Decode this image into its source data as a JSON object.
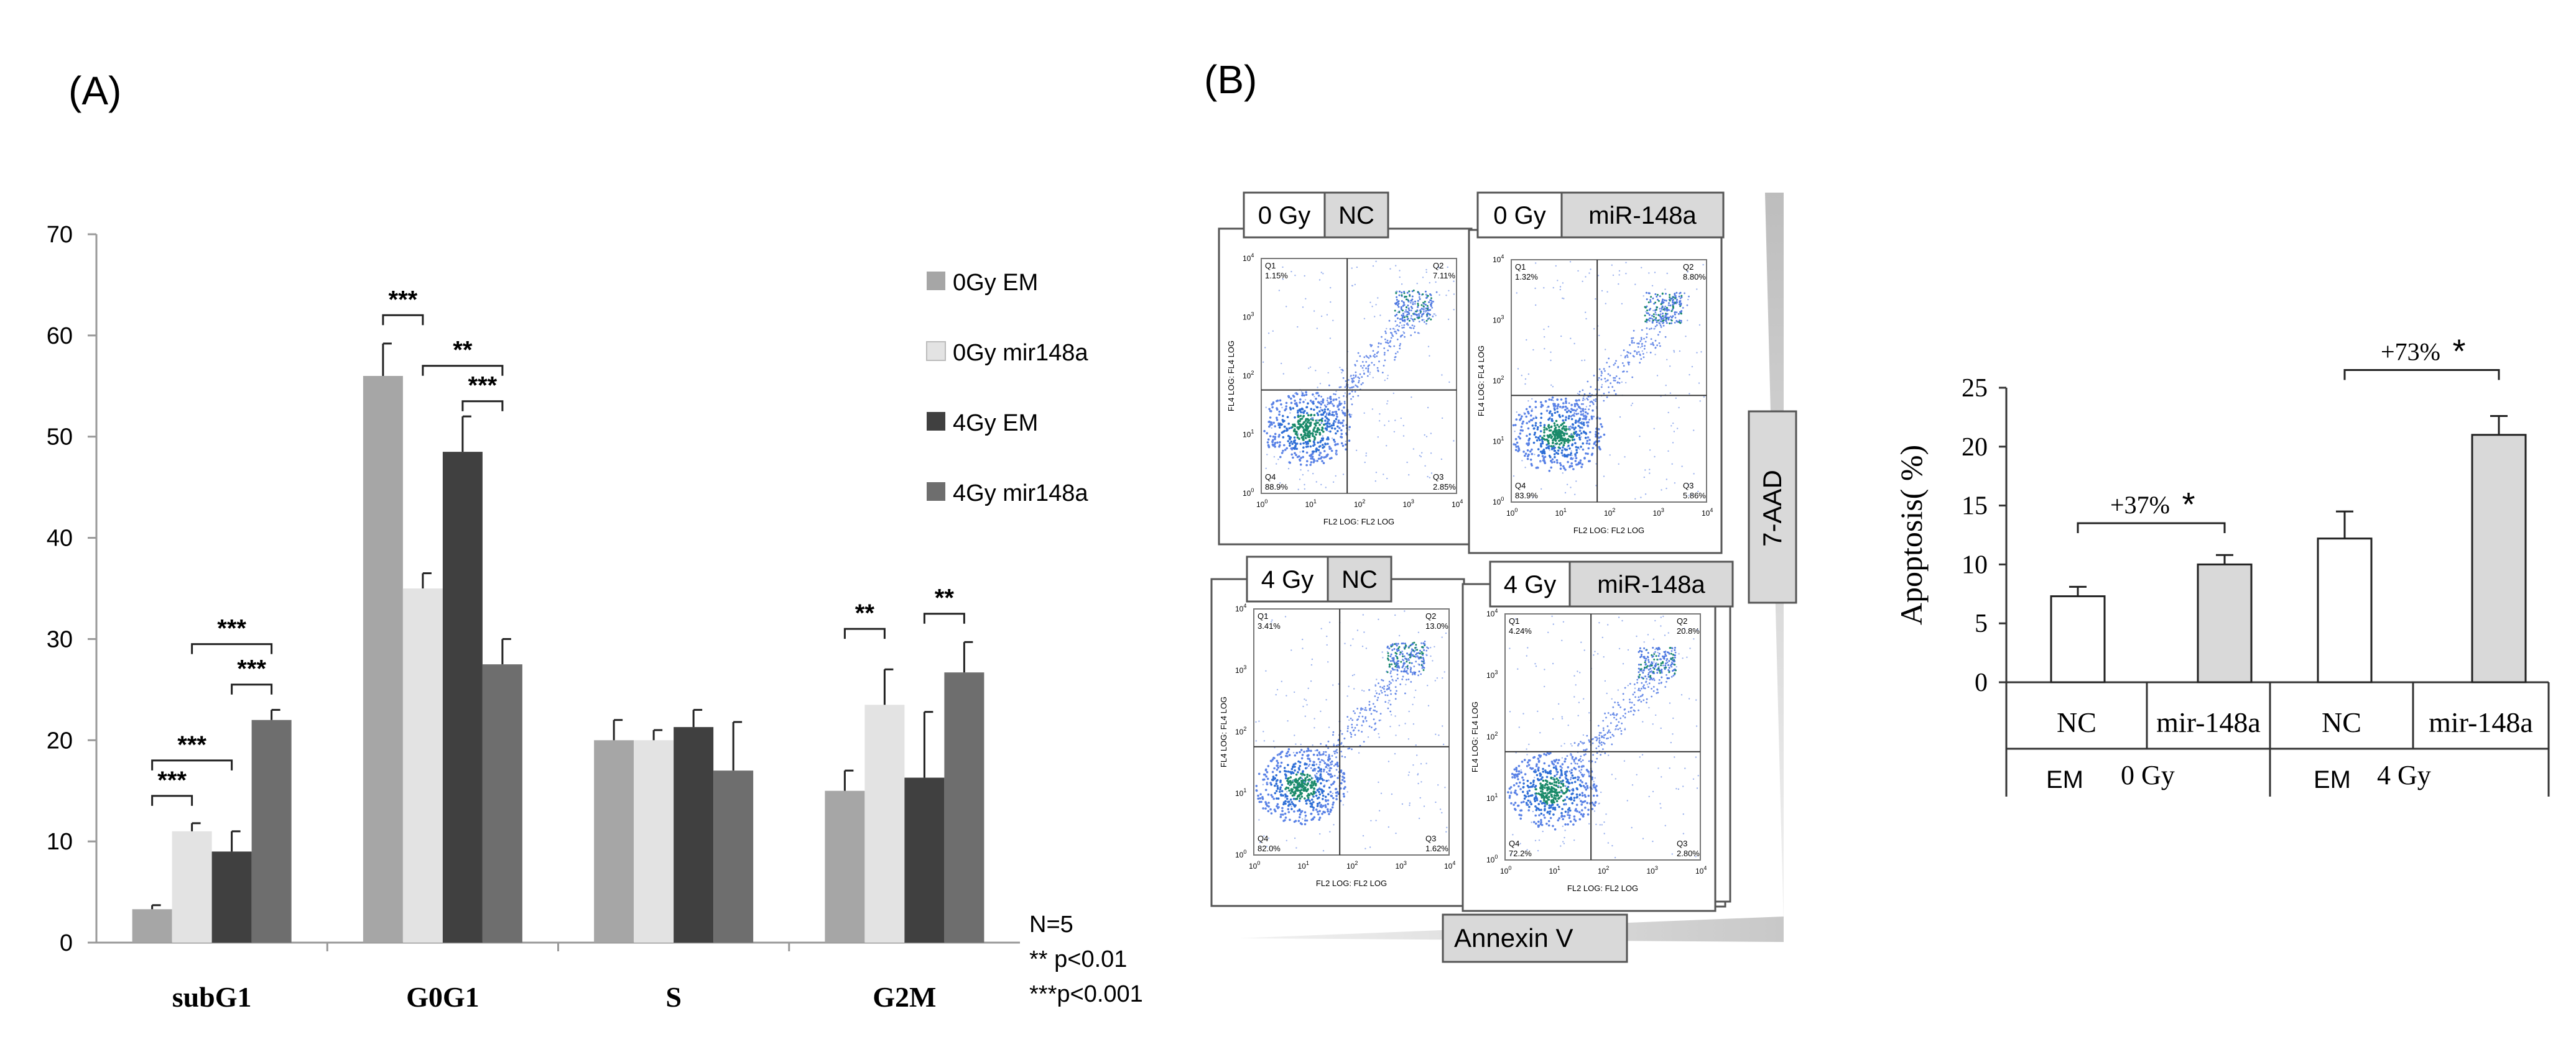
{
  "panel_a_label": "(A)",
  "panel_b_label": "(B)",
  "chart_data": [
    {
      "type": "bar",
      "panel": "A",
      "title": "",
      "xlabel": "",
      "ylabel": "",
      "ylim": [
        0,
        70
      ],
      "yticks": [
        0,
        10,
        20,
        30,
        40,
        50,
        60,
        70
      ],
      "categories": [
        "subG1",
        "G0G1",
        "S",
        "G2M"
      ],
      "series": [
        {
          "name": "0Gy EM",
          "color": "#a6a6a6",
          "values": [
            3.3,
            56.0,
            20.0,
            15.0
          ],
          "errors": [
            0.4,
            3.2,
            2.0,
            2.0
          ]
        },
        {
          "name": "0Gy mir148a",
          "color": "#e3e3e3",
          "values": [
            11.0,
            35.0,
            20.0,
            23.5
          ],
          "errors": [
            0.8,
            1.5,
            1.0,
            3.5
          ]
        },
        {
          "name": "4Gy EM",
          "color": "#404040",
          "values": [
            9.0,
            48.5,
            21.3,
            16.3
          ],
          "errors": [
            2.0,
            3.5,
            1.7,
            6.5
          ]
        },
        {
          "name": "4Gy mir148a",
          "color": "#6e6e6e",
          "values": [
            22.0,
            27.5,
            17.0,
            26.7
          ],
          "errors": [
            1.0,
            2.5,
            4.8,
            3.0
          ]
        }
      ],
      "significance": [
        {
          "label": "***",
          "category": 0,
          "from": 0,
          "to": 1,
          "y": 14.5
        },
        {
          "label": "***",
          "category": 0,
          "from": 0,
          "to": 2,
          "y": 18.0
        },
        {
          "label": "***",
          "category": 0,
          "from": 1,
          "to": 3,
          "y": 29.5
        },
        {
          "label": "***",
          "category": 0,
          "from": 2,
          "to": 3,
          "y": 25.5
        },
        {
          "label": "***",
          "category": 1,
          "from": 0,
          "to": 1,
          "y": 62.0
        },
        {
          "label": "**",
          "category": 1,
          "from": 1,
          "to": 3,
          "y": 57.0
        },
        {
          "label": "***",
          "category": 1,
          "from": 2,
          "to": 3,
          "y": 53.5
        },
        {
          "label": "**",
          "category": 3,
          "from": 0,
          "to": 1,
          "y": 31.0
        },
        {
          "label": "**",
          "category": 3,
          "from": 2,
          "to": 3,
          "y": 32.5
        }
      ],
      "footnotes": [
        "N=5",
        "** p<0.01",
        "***p<0.001"
      ]
    },
    {
      "type": "bar",
      "panel": "B",
      "title": "",
      "xlabel": "",
      "ylabel": "Apoptosis( %)",
      "ylim": [
        0,
        25
      ],
      "yticks": [
        0,
        5,
        10,
        15,
        20,
        25
      ],
      "categories": [
        "NC",
        "mir-148a",
        "NC",
        "mir-148a"
      ],
      "groups": [
        {
          "prefix": "EM",
          "label": "0 Gy"
        },
        {
          "prefix": "EM",
          "label": "4 Gy"
        }
      ],
      "values": [
        7.3,
        10.0,
        12.2,
        21.0
      ],
      "errors": [
        0.8,
        0.8,
        2.3,
        1.6
      ],
      "colors": [
        "#ffffff",
        "#d9d9d9",
        "#ffffff",
        "#d9d9d9"
      ],
      "annotations": [
        {
          "label": "+37%",
          "star": "*",
          "from": 0,
          "to": 1,
          "y": 13.5
        },
        {
          "label": "+73%",
          "star": "*",
          "from": 2,
          "to": 3,
          "y": 26.5
        }
      ]
    }
  ],
  "flow_cytometry": {
    "panels": [
      {
        "dose": "0 Gy",
        "treatment": "NC",
        "q1": "1.15%",
        "q2": "7.11%",
        "q3": "2.85%",
        "q4": "88.9%"
      },
      {
        "dose": "0 Gy",
        "treatment": "miR-148a",
        "q1": "1.32%",
        "q2": "8.80%",
        "q3": "5.86%",
        "q4": "83.9%"
      },
      {
        "dose": "4 Gy",
        "treatment": "NC",
        "q1": "3.41%",
        "q2": "13.0%",
        "q3": "1.62%",
        "q4": "82.0%"
      },
      {
        "dose": "4 Gy",
        "treatment": "miR-148a",
        "q1": "4.24%",
        "q2": "20.8%",
        "q3": "2.80%",
        "q4": "72.2%"
      }
    ],
    "x_axis_label": "Annexin V",
    "y_axis_label": "7-AAD",
    "plot_x_label": "FL2 LOG: FL2 LOG",
    "plot_y_label": "FL4 LOG: FL4 LOG",
    "quadrant_names": [
      "Q1",
      "Q2",
      "Q3",
      "Q4"
    ],
    "tick_labels": [
      "10",
      "10",
      "10",
      "10",
      "10"
    ],
    "tick_exponents": [
      "0",
      "1",
      "2",
      "3",
      "4"
    ]
  }
}
